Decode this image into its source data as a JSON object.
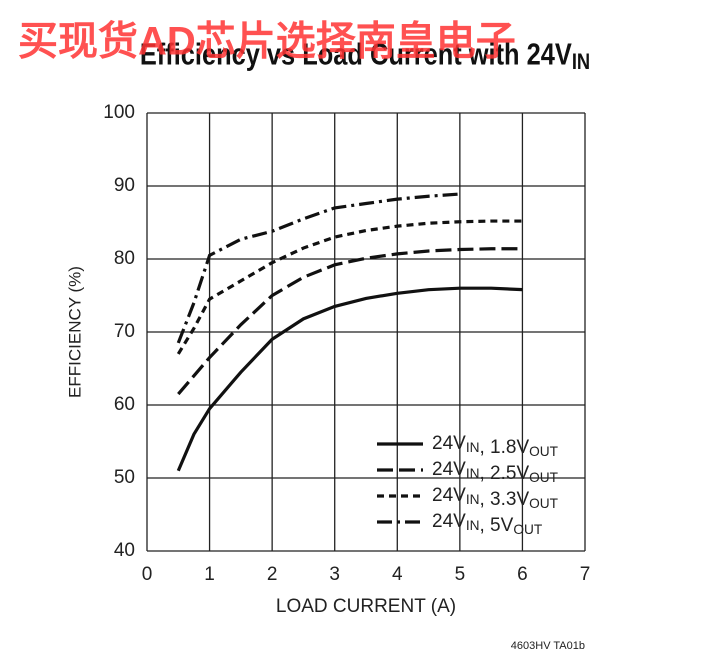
{
  "chart_data": {
    "type": "line",
    "watermark": "买现货AD芯片选择南皇电子",
    "title": "Efficiency vs Load Current with 24VIN",
    "x_label": "LOAD CURRENT (A)",
    "y_label": "EFFICIENCY (%)",
    "footnote": "4603HV TA01b",
    "x": [
      0.5,
      0.75,
      1,
      1.5,
      2,
      2.5,
      3,
      3.5,
      4,
      4.5,
      5,
      5.5,
      6
    ],
    "series": [
      {
        "name": "24VIN, 1.8VOUT",
        "color": "#111111",
        "dash": "solid",
        "values": [
          51,
          56,
          59.5,
          64.5,
          69,
          71.8,
          73.5,
          74.6,
          75.3,
          75.8,
          76,
          76,
          75.8
        ]
      },
      {
        "name": "24VIN, 2.5VOUT",
        "color": "#111111",
        "dash": "long-dash",
        "values": [
          61.5,
          64,
          66.5,
          71,
          75,
          77.5,
          79.2,
          80.1,
          80.7,
          81.1,
          81.3,
          81.4,
          81.4
        ]
      },
      {
        "name": "24VIN, 3.3VOUT",
        "color": "#111111",
        "dash": "short-dash",
        "values": [
          67,
          70.5,
          74.5,
          77,
          79.5,
          81.5,
          83,
          83.9,
          84.5,
          84.9,
          85.1,
          85.2,
          85.2
        ]
      },
      {
        "name": "24VIN, 5VOUT",
        "color": "#111111",
        "dash": "dash-dot",
        "values": [
          68.5,
          74,
          80.5,
          82.7,
          83.8,
          85.5,
          87,
          87.6,
          88.2,
          88.6,
          88.9,
          null,
          null
        ]
      }
    ],
    "xlim": [
      0,
      7
    ],
    "xticks": [
      0,
      1,
      2,
      3,
      4,
      5,
      6,
      7
    ],
    "ylim": [
      40,
      100
    ],
    "yticks": [
      40,
      50,
      60,
      70,
      80,
      90,
      100
    ],
    "grid": true,
    "legend": "lower-right"
  }
}
